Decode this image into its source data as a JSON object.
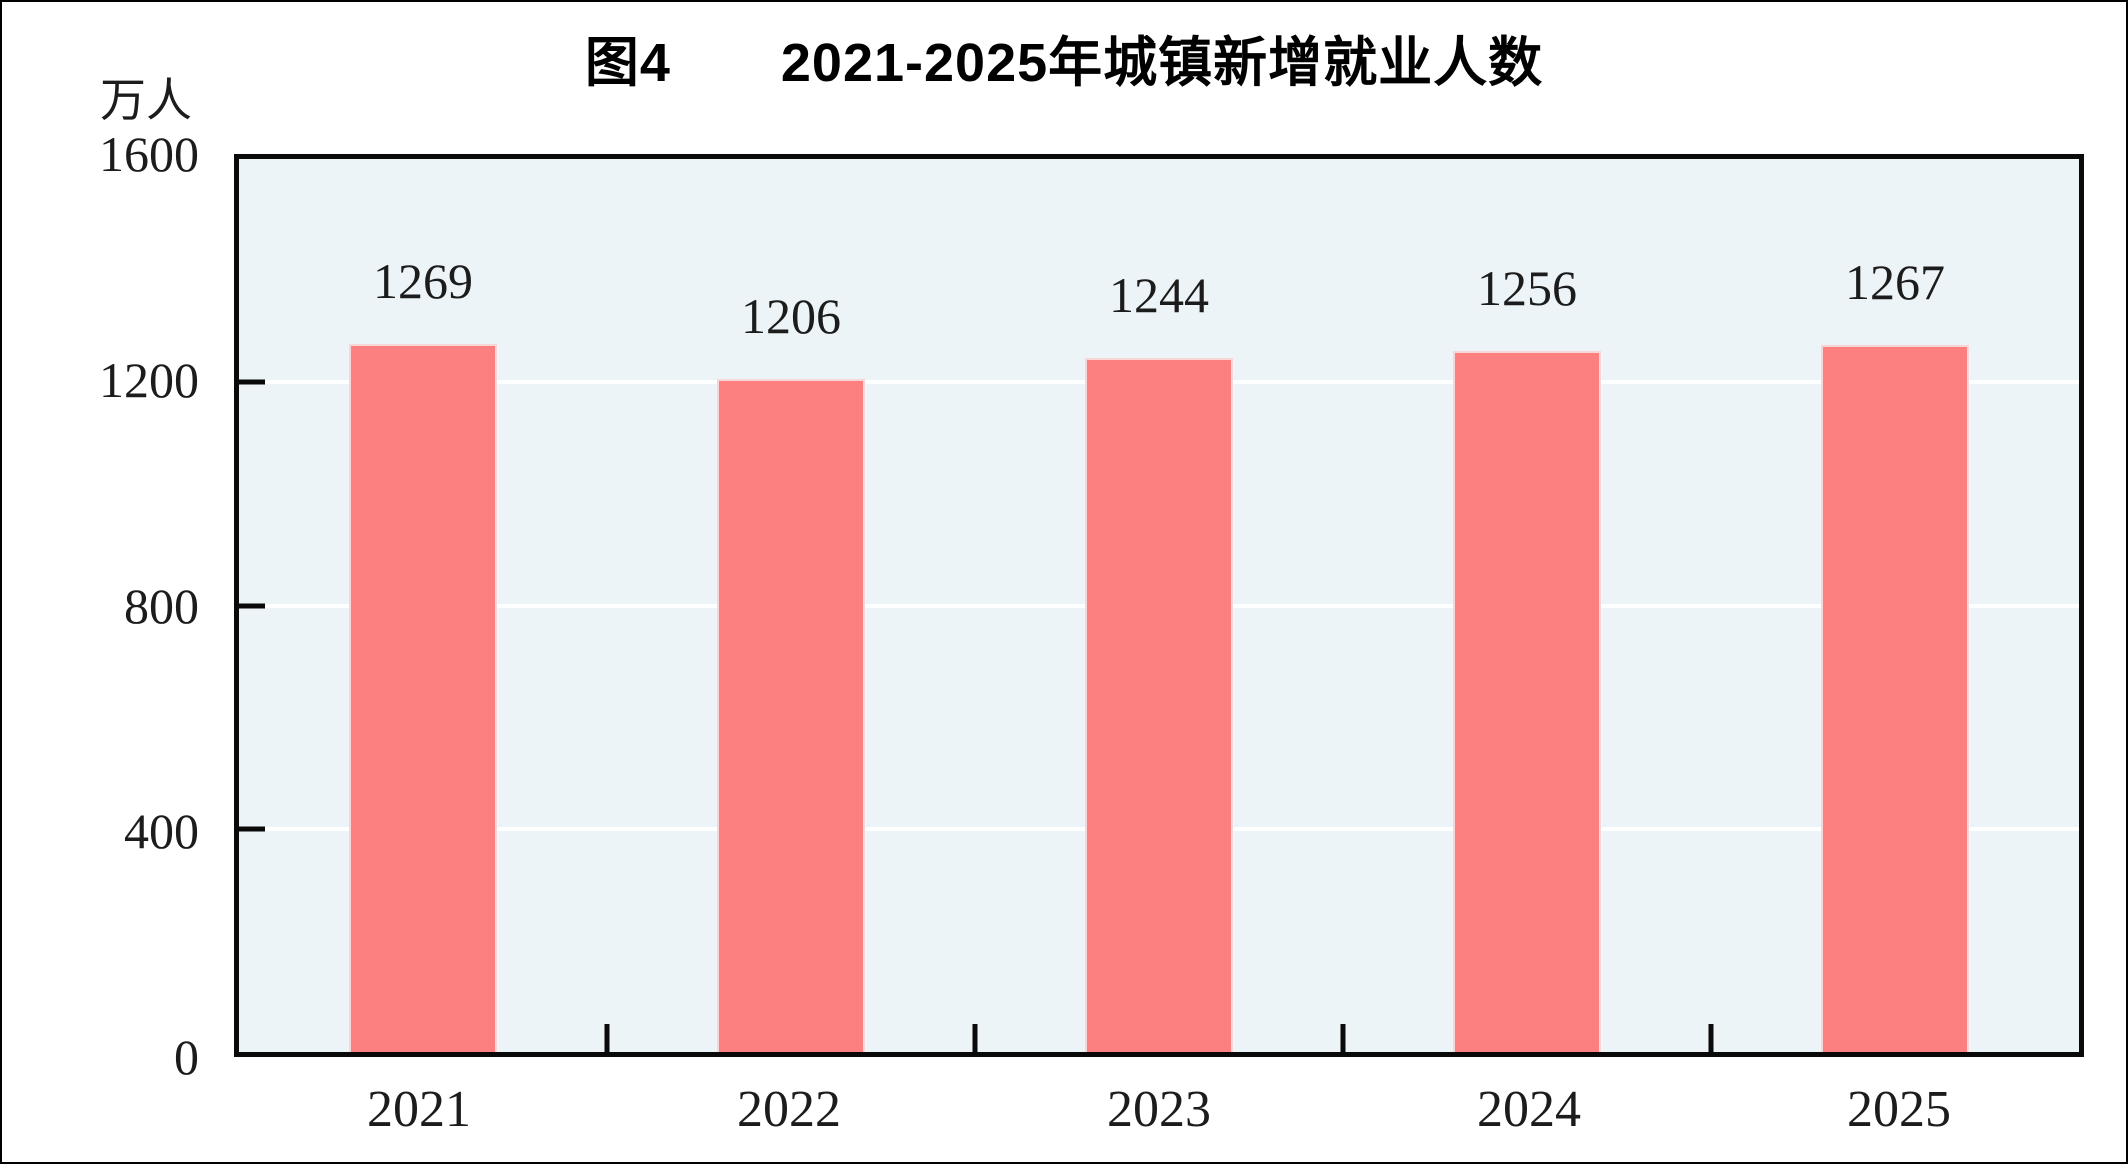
{
  "figure": {
    "title": "图4　　2021-2025年城镇新增就业人数",
    "y_axis_unit": "万人"
  },
  "colors": {
    "bar_fill": "#fc8080",
    "bar_edge": "#f7d7d5",
    "plot_background": "#edf4f7",
    "gridline": "#ffffff",
    "axis_frame": "#0a0a0a",
    "text": "#1c1c1c",
    "title_text": "#000000",
    "page_background": "#ffffff"
  },
  "chart_data": {
    "type": "bar",
    "title": "图4　　2021-2025年城镇新增就业人数",
    "categories": [
      "2021",
      "2022",
      "2023",
      "2024",
      "2025"
    ],
    "values": [
      1269,
      1206,
      1244,
      1256,
      1267
    ],
    "value_labels_shown": true,
    "xlabel": "",
    "ylabel": "万人",
    "ylim": [
      0,
      1600
    ],
    "yticks": [
      0,
      400,
      800,
      1200,
      1600
    ],
    "grid": "horizontal white lines at interior yticks",
    "legend_position": "none"
  }
}
